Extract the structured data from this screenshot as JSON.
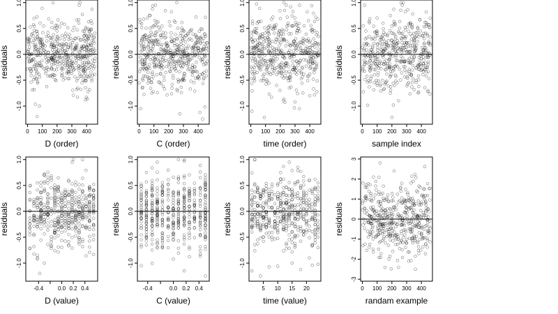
{
  "chart_data": [
    {
      "type": "scatter",
      "xlabel": "D (order)",
      "ylabel": "residuals",
      "xlim": [
        -12,
        475
      ],
      "ylim": [
        -1.35,
        1.05
      ],
      "x_ticks": [
        0,
        100,
        200,
        300,
        400
      ],
      "x_tick_labels": [
        "0",
        "100",
        "200",
        "300",
        "400"
      ],
      "y_ticks": [
        -1.0,
        -0.5,
        0.0,
        0.5,
        1.0
      ],
      "y_tick_labels": [
        "-1.0",
        "-0.5",
        "0.0",
        "0.5",
        "1.0"
      ],
      "reference_line_y": 0,
      "n_points": 460,
      "x_range": [
        0,
        460
      ],
      "points_style": "open circles",
      "points": [
        [
          5,
          0.25
        ],
        [
          28,
          0.0
        ],
        [
          43,
          -0.23
        ],
        [
          45,
          -0.68
        ],
        [
          50,
          -0.44
        ],
        [
          58,
          -0.3
        ],
        [
          65,
          -1.2
        ],
        [
          80,
          -1.0
        ],
        [
          82,
          0.3
        ],
        [
          98,
          -0.12
        ],
        [
          108,
          0.18
        ],
        [
          128,
          0.35
        ],
        [
          140,
          -0.3
        ],
        [
          152,
          -0.42
        ],
        [
          170,
          -0.1
        ],
        [
          175,
          0.38
        ],
        [
          195,
          0.05
        ],
        [
          200,
          0.45
        ],
        [
          218,
          -0.18
        ],
        [
          232,
          -0.42
        ],
        [
          250,
          0.58
        ],
        [
          268,
          -0.1
        ],
        [
          290,
          0.2
        ],
        [
          305,
          0.08
        ],
        [
          345,
          -0.08
        ],
        [
          345,
          0.32
        ],
        [
          350,
          0.95
        ],
        [
          355,
          1.0
        ],
        [
          380,
          -0.3
        ],
        [
          395,
          0.15
        ],
        [
          410,
          -0.72
        ],
        [
          420,
          -0.68
        ],
        [
          430,
          0.38
        ],
        [
          445,
          -0.18
        ],
        [
          450,
          0.32
        ]
      ]
    },
    {
      "type": "scatter",
      "xlabel": "C (order)",
      "ylabel": "residuals",
      "xlim": [
        -12,
        475
      ],
      "ylim": [
        -1.35,
        1.05
      ],
      "x_ticks": [
        0,
        100,
        200,
        300,
        400
      ],
      "x_tick_labels": [
        "0",
        "100",
        "200",
        "300",
        "400"
      ],
      "y_ticks": [
        -1.0,
        -0.5,
        0.0,
        0.5,
        1.0
      ],
      "y_tick_labels": [
        "-1.0",
        "-0.5",
        "0.0",
        "0.5",
        "1.0"
      ],
      "reference_line_y": 0,
      "n_points": 460,
      "x_range": [
        0,
        460
      ],
      "points_style": "open circles",
      "points": [
        [
          10,
          -1.05
        ],
        [
          15,
          0.15
        ],
        [
          30,
          0.68
        ],
        [
          50,
          0.32
        ],
        [
          70,
          -0.2
        ],
        [
          95,
          -0.72
        ],
        [
          110,
          0.95
        ],
        [
          130,
          0.2
        ],
        [
          150,
          0.32
        ],
        [
          180,
          -0.35
        ],
        [
          200,
          -0.1
        ],
        [
          210,
          0.55
        ],
        [
          255,
          1.0
        ],
        [
          262,
          0.15
        ],
        [
          275,
          -1.15
        ],
        [
          295,
          0.05
        ],
        [
          305,
          -0.5
        ],
        [
          335,
          0.28
        ],
        [
          355,
          0.48
        ],
        [
          380,
          -0.02
        ],
        [
          430,
          -1.25
        ],
        [
          440,
          -0.35
        ],
        [
          450,
          0.35
        ]
      ]
    },
    {
      "type": "scatter",
      "xlabel": "time (order)",
      "ylabel": "residuals",
      "xlim": [
        -12,
        475
      ],
      "ylim": [
        -1.35,
        1.05
      ],
      "x_ticks": [
        0,
        100,
        200,
        300,
        400
      ],
      "x_tick_labels": [
        "0",
        "100",
        "200",
        "300",
        "400"
      ],
      "y_ticks": [
        -1.0,
        -0.5,
        0.0,
        0.5,
        1.0
      ],
      "y_tick_labels": [
        "-1.0",
        "-0.5",
        "0.0",
        "0.5",
        "1.0"
      ],
      "reference_line_y": 0,
      "n_points": 460,
      "x_range": [
        0,
        460
      ],
      "points_style": "open circles",
      "points": [
        [
          8,
          -1.1
        ],
        [
          25,
          -0.45
        ],
        [
          40,
          0.5
        ],
        [
          55,
          -0.25
        ],
        [
          75,
          -0.2
        ],
        [
          92,
          -1.22
        ],
        [
          110,
          0.45
        ],
        [
          130,
          0.55
        ],
        [
          150,
          0.72
        ],
        [
          175,
          -0.6
        ],
        [
          200,
          0.05
        ],
        [
          225,
          1.0
        ],
        [
          240,
          0.95
        ],
        [
          270,
          0.92
        ],
        [
          295,
          -0.25
        ],
        [
          330,
          -1.05
        ],
        [
          350,
          0.22
        ],
        [
          390,
          0.3
        ],
        [
          420,
          0.48
        ],
        [
          448,
          -0.72
        ]
      ]
    },
    {
      "type": "scatter",
      "xlabel": "sample index",
      "ylabel": "residuals",
      "xlim": [
        -12,
        475
      ],
      "ylim": [
        -1.35,
        1.05
      ],
      "x_ticks": [
        0,
        100,
        200,
        300,
        400
      ],
      "x_tick_labels": [
        "0",
        "100",
        "200",
        "300",
        "400"
      ],
      "y_ticks": [
        -1.0,
        -0.5,
        0.0,
        0.5,
        1.0
      ],
      "y_tick_labels": [
        "-1.0",
        "-0.5",
        "0.0",
        "0.5",
        "1.0"
      ],
      "reference_line_y": 0,
      "n_points": 460,
      "x_range": [
        0,
        460
      ],
      "points_style": "open circles",
      "points": [
        [
          5,
          0.55
        ],
        [
          15,
          0.95
        ],
        [
          30,
          0.32
        ],
        [
          55,
          -0.22
        ],
        [
          70,
          0.05
        ],
        [
          95,
          -0.5
        ],
        [
          120,
          0.28
        ],
        [
          140,
          0.6
        ],
        [
          160,
          -0.3
        ],
        [
          190,
          -0.75
        ],
        [
          200,
          -1.22
        ],
        [
          210,
          -0.98
        ],
        [
          220,
          0.38
        ],
        [
          235,
          0.2
        ],
        [
          260,
          0.85
        ],
        [
          270,
          0.95
        ],
        [
          300,
          0.05
        ],
        [
          320,
          -0.38
        ],
        [
          350,
          -0.68
        ],
        [
          375,
          0.5
        ],
        [
          395,
          -0.18
        ],
        [
          410,
          0.35
        ],
        [
          430,
          -0.25
        ],
        [
          450,
          0.25
        ]
      ]
    },
    {
      "type": "scatter",
      "xlabel": "D (value)",
      "ylabel": "residuals",
      "xlim": [
        -0.62,
        0.62
      ],
      "ylim": [
        -1.35,
        1.05
      ],
      "x_ticks": [
        -0.4,
        -0.2,
        0.0,
        0.2,
        0.4
      ],
      "x_tick_labels": [
        "-0.4",
        "",
        "0.0",
        "0.2",
        "0.4"
      ],
      "y_ticks": [
        -1.0,
        -0.5,
        0.0,
        0.5,
        1.0
      ],
      "y_tick_labels": [
        "-1.0",
        "-0.5",
        "0.0",
        "0.5",
        "1.0"
      ],
      "reference_line_y": 0,
      "n_points": 460,
      "x_range": [
        -0.55,
        0.55
      ],
      "x_levels": [
        -0.55,
        -0.48,
        -0.42,
        -0.36,
        -0.3,
        -0.24,
        -0.18,
        -0.12,
        -0.06,
        0.0,
        0.06,
        0.12,
        0.18,
        0.24,
        0.3,
        0.36,
        0.42,
        0.48,
        0.55
      ],
      "points_style": "open circles",
      "points": [
        [
          -0.54,
          0.5
        ],
        [
          -0.48,
          -0.68
        ],
        [
          -0.38,
          -1.2
        ],
        [
          -0.3,
          -1.0
        ],
        [
          -0.3,
          0.72
        ],
        [
          -0.24,
          0.15
        ],
        [
          -0.18,
          0.6
        ],
        [
          -0.12,
          -0.4
        ],
        [
          -0.06,
          0.65
        ],
        [
          0.0,
          -0.3
        ],
        [
          0.06,
          0.38
        ],
        [
          0.12,
          -0.28
        ],
        [
          0.18,
          0.95
        ],
        [
          0.2,
          1.0
        ],
        [
          0.24,
          -0.05
        ],
        [
          0.3,
          -0.42
        ],
        [
          0.36,
          -0.68
        ],
        [
          0.42,
          0.1
        ],
        [
          0.5,
          0.32
        ]
      ]
    },
    {
      "type": "scatter",
      "xlabel": "C (value)",
      "ylabel": "residuals",
      "xlim": [
        -0.56,
        0.56
      ],
      "ylim": [
        -1.35,
        1.05
      ],
      "x_ticks": [
        -0.4,
        -0.2,
        0.0,
        0.2,
        0.4
      ],
      "x_tick_labels": [
        "-0.4",
        "",
        "0.0",
        "0.2",
        "0.4"
      ],
      "y_ticks": [
        -1.0,
        -0.5,
        0.0,
        0.5,
        1.0
      ],
      "y_tick_labels": [
        "-1.0",
        "-0.5",
        "0.0",
        "0.5",
        "1.0"
      ],
      "reference_line_y": 0,
      "n_points": 460,
      "x_range": [
        -0.5,
        0.5
      ],
      "x_levels": [
        -0.5,
        -0.42,
        -0.33,
        -0.25,
        -0.17,
        -0.08,
        0.0,
        0.08,
        0.17,
        0.25,
        0.33,
        0.42,
        0.5
      ],
      "points_style": "open circles",
      "points": [
        [
          -0.5,
          -1.05
        ],
        [
          -0.42,
          0.75
        ],
        [
          -0.33,
          -0.75
        ],
        [
          -0.25,
          0.95
        ],
        [
          -0.17,
          -0.15
        ],
        [
          -0.08,
          0.52
        ],
        [
          0.0,
          -0.45
        ],
        [
          0.08,
          1.0
        ],
        [
          0.17,
          -1.15
        ],
        [
          0.25,
          0.25
        ],
        [
          0.33,
          -0.2
        ],
        [
          0.42,
          0.45
        ],
        [
          0.5,
          -1.25
        ]
      ]
    },
    {
      "type": "scatter",
      "xlabel": "time (value)",
      "ylabel": "residuals",
      "xlim": [
        0,
        25
      ],
      "ylim": [
        -1.35,
        1.05
      ],
      "x_ticks": [
        5,
        10,
        15,
        20
      ],
      "x_tick_labels": [
        "5",
        "10",
        "15",
        "20"
      ],
      "y_ticks": [
        -1.0,
        -0.5,
        0.0,
        0.5,
        1.0
      ],
      "y_tick_labels": [
        "-1.0",
        "-0.5",
        "0.0",
        "0.5",
        "1.0"
      ],
      "reference_line_y": 0,
      "n_points": 460,
      "x_range": [
        1,
        24
      ],
      "x_levels": [
        1,
        2,
        3,
        4,
        5,
        6,
        7,
        8,
        9,
        10,
        11,
        12,
        13,
        14,
        15,
        16,
        17,
        18,
        19,
        20,
        21,
        22,
        23,
        24
      ],
      "points_style": "open circles",
      "points": [
        [
          1,
          -1.15
        ],
        [
          4,
          -1.25
        ],
        [
          5,
          0.3
        ],
        [
          8,
          -0.5
        ],
        [
          11,
          0.75
        ],
        [
          12,
          -0.1
        ],
        [
          12,
          0.62
        ],
        [
          14,
          0.95
        ],
        [
          15,
          -1.0
        ],
        [
          17,
          0.85
        ],
        [
          19,
          -0.45
        ],
        [
          22,
          0.35
        ],
        [
          24,
          -0.7
        ]
      ]
    },
    {
      "type": "scatter",
      "xlabel": "randam example",
      "ylabel": "residuals",
      "xlim": [
        -12,
        475
      ],
      "ylim": [
        -3.1,
        3.1
      ],
      "x_ticks": [
        0,
        100,
        200,
        300,
        400
      ],
      "x_tick_labels": [
        "0",
        "100",
        "200",
        "300",
        "400"
      ],
      "y_ticks": [
        -3,
        -2,
        -1,
        0,
        1,
        2,
        3
      ],
      "y_tick_labels": [
        "-3",
        "-2",
        "-1",
        "0",
        "1",
        "2",
        "3"
      ],
      "reference_line_y": 0,
      "n_points": 460,
      "x_range": [
        0,
        460
      ],
      "points_style": "open circles",
      "points": [
        [
          5,
          -0.3
        ],
        [
          20,
          1.6
        ],
        [
          40,
          -0.9
        ],
        [
          75,
          2.1
        ],
        [
          110,
          -1.5
        ],
        [
          120,
          2.8
        ],
        [
          140,
          0.5
        ],
        [
          180,
          -2.0
        ],
        [
          215,
          2.4
        ],
        [
          245,
          -2.4
        ],
        [
          270,
          0.8
        ],
        [
          300,
          -1.2
        ],
        [
          330,
          1.8
        ],
        [
          360,
          -2.5
        ],
        [
          385,
          -0.2
        ],
        [
          420,
          1.5
        ],
        [
          440,
          -1.4
        ]
      ]
    }
  ]
}
